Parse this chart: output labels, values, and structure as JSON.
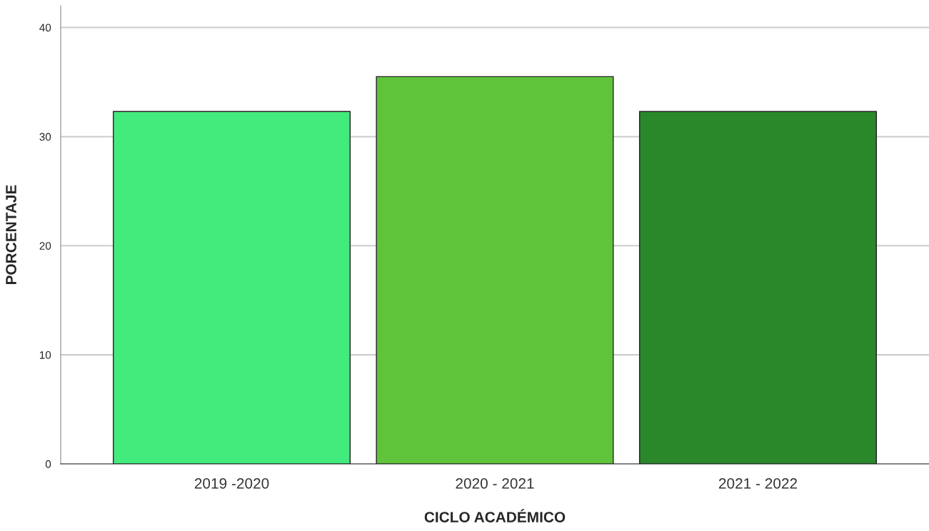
{
  "chart_data": {
    "type": "bar",
    "xlabel": "CICLO ACADÉMICO",
    "ylabel": "PORCENTAJE",
    "categories": [
      "2019 -2020",
      "2020 - 2021",
      "2021 - 2022"
    ],
    "values": [
      32.3,
      35.5,
      32.3
    ],
    "colors": [
      "#43ea7c",
      "#5fc43a",
      "#2a882b"
    ],
    "ylim": [
      0,
      42
    ],
    "yticks": [
      0,
      10,
      20,
      30,
      40
    ],
    "grid": "y"
  }
}
